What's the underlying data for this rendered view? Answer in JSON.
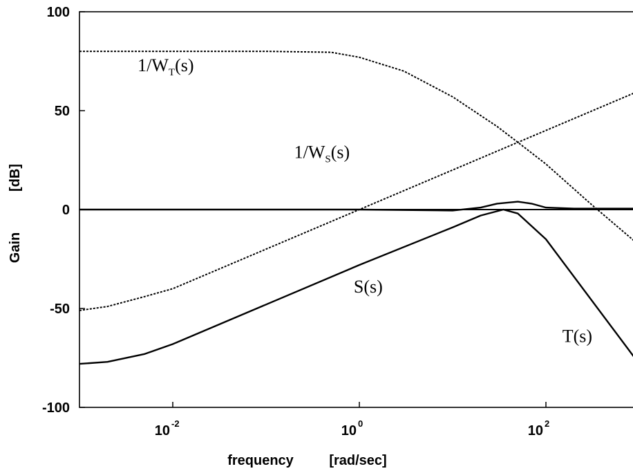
{
  "chart_data": {
    "type": "line",
    "xscale": "log",
    "xlim": [
      0.001,
      1000
    ],
    "ylim": [
      -100,
      100
    ],
    "xlabel": "frequency",
    "xlabel_unit": "[rad/sec]",
    "ylabel": "Gain",
    "ylabel_unit": "[dB]",
    "x_ticks": [
      {
        "base": "10",
        "exp": "-2",
        "value": 0.01
      },
      {
        "base": "10",
        "exp": "0",
        "value": 1
      },
      {
        "base": "10",
        "exp": "2",
        "value": 100
      }
    ],
    "y_ticks": [
      {
        "label": "100",
        "value": 100
      },
      {
        "label": "50",
        "value": 50
      },
      {
        "label": "0",
        "value": 0
      },
      {
        "label": "-50",
        "value": -50
      },
      {
        "label": "-100",
        "value": -100
      }
    ],
    "zero_line": true,
    "series": [
      {
        "name": "1/W_T(s)",
        "label_main": "1/W",
        "label_sub": "T",
        "label_tail": "(s)",
        "label_at": [
          0.0042,
          70
        ],
        "style": "dotted",
        "x": [
          0.001,
          0.01,
          0.1,
          0.5,
          1,
          3,
          10,
          30,
          50,
          100,
          300,
          1000
        ],
        "y": [
          80,
          80,
          80,
          79.5,
          77,
          70,
          57,
          42,
          34,
          23,
          3,
          -18
        ]
      },
      {
        "name": "1/W_S(s)",
        "label_main": "1/W",
        "label_sub": "S",
        "label_tail": "(s)",
        "label_at": [
          0.2,
          26
        ],
        "style": "dotted",
        "x": [
          0.001,
          0.002,
          0.005,
          0.01,
          0.1,
          1,
          10,
          100,
          1000
        ],
        "y": [
          -51,
          -49,
          -44,
          -40,
          -20,
          0,
          20,
          40,
          60
        ]
      },
      {
        "name": "S(s)",
        "label_main": "S(s)",
        "label_at": [
          0.0009,
          -42
        ],
        "label_x_frac": 0.49,
        "style": "solid",
        "x": [
          0.001,
          1,
          10,
          20,
          30,
          50,
          70,
          100,
          200,
          1000
        ],
        "y": [
          0,
          0,
          -0.5,
          1,
          3,
          4,
          3,
          1,
          0.5,
          0.5
        ]
      },
      {
        "name": "T(s)",
        "label_main": "T(s)",
        "label_at": [
          150,
          -67
        ],
        "style": "solid",
        "x": [
          0.001,
          0.002,
          0.005,
          0.01,
          0.1,
          1,
          10,
          20,
          35,
          50,
          100,
          1000
        ],
        "y": [
          -78,
          -77,
          -73,
          -68,
          -48,
          -28,
          -9,
          -3,
          0,
          -2,
          -15,
          -78
        ]
      }
    ]
  }
}
